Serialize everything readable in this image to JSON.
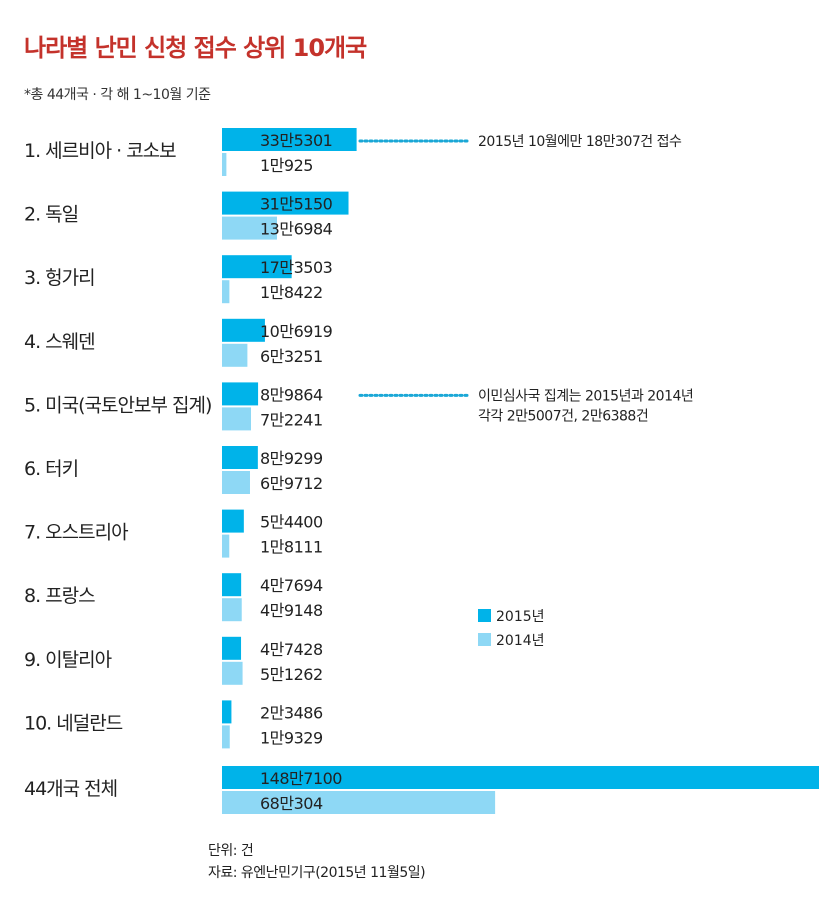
{
  "title": "나라별 난민 신청 접수 상위 10개국",
  "subtitle": "*총 44개국 · 각 해 1~10월 기준",
  "colors": {
    "y2015": "#00b3e9",
    "y2014": "#8ed8f5",
    "title": "#c4322b",
    "dots": "#1aa7d6"
  },
  "chart_data": {
    "type": "bar",
    "orientation": "horizontal",
    "categories": [
      "1. 세르비아 · 코소보",
      "2. 독일",
      "3. 헝가리",
      "4. 스웨덴",
      "5. 미국(국토안보부 집계)",
      "6. 터키",
      "7. 오스트리아",
      "8. 프랑스",
      "9. 이탈리아",
      "10. 네덜란드",
      "44개국 전체"
    ],
    "series": [
      {
        "name": "2015년",
        "values": [
          335301,
          315150,
          173503,
          106919,
          89864,
          89299,
          54400,
          47694,
          47428,
          23486,
          1487100
        ],
        "labels": [
          "33만5301",
          "31만5150",
          "17만3503",
          "10만6919",
          "8만9864",
          "8만9299",
          "5만4400",
          "4만7694",
          "4만7428",
          "2만3486",
          "148만7100"
        ]
      },
      {
        "name": "2014년",
        "values": [
          10925,
          136984,
          18422,
          63251,
          72241,
          69712,
          18111,
          49148,
          51262,
          19329,
          680304
        ],
        "labels": [
          "1만925",
          "13만6984",
          "1만8422",
          "6만3251",
          "7만2241",
          "6만9712",
          "1만8111",
          "4만9148",
          "5만1262",
          "1만9329",
          "68만304"
        ]
      }
    ],
    "legend": [
      "2015년",
      "2014년"
    ],
    "legend_position": "right",
    "annotations": [
      {
        "category_index": 0,
        "lines": [
          "2015년 10월에만 18만307건 접수"
        ]
      },
      {
        "category_index": 4,
        "lines": [
          "이민심사국 집계는 2015년과 2014년",
          "각각 2만5007건, 2만6388건"
        ]
      }
    ]
  },
  "footer": {
    "unit": "단위: 건",
    "source": "자료: 유엔난민기구(2015년 11월5일)"
  }
}
